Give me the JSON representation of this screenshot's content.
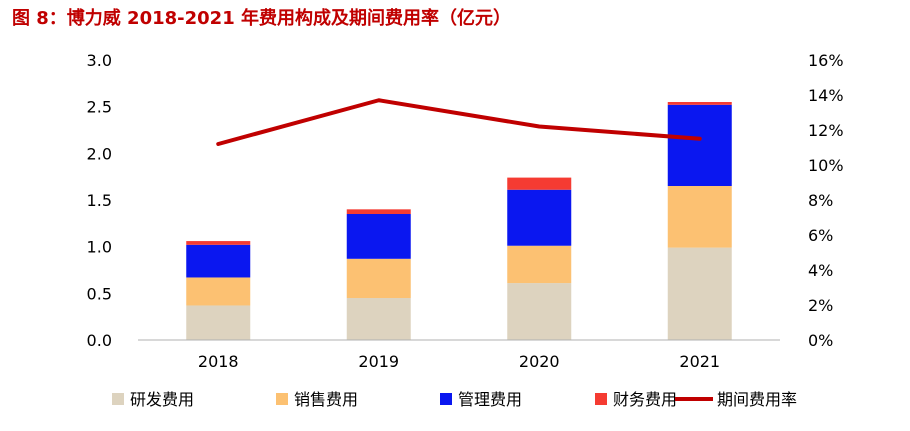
{
  "title": "图 8：博力威 2018-2021 年费用构成及期间费用率（亿元）",
  "colors": {
    "title": "#c00000",
    "rd": "#ddd3bf",
    "sales": "#fcc172",
    "mgmt": "#0a17f0",
    "fin": "#f53b32",
    "ratio": "#c00000",
    "axis": "#b0b0b0"
  },
  "chart_data": {
    "type": "bar",
    "stacked": true,
    "categories": [
      "2018",
      "2019",
      "2020",
      "2021"
    ],
    "series": [
      {
        "name": "研发费用",
        "values": [
          0.37,
          0.45,
          0.61,
          0.99
        ],
        "color_key": "rd"
      },
      {
        "name": "销售费用",
        "values": [
          0.3,
          0.42,
          0.4,
          0.66
        ],
        "color_key": "sales"
      },
      {
        "name": "管理费用",
        "values": [
          0.35,
          0.48,
          0.6,
          0.87
        ],
        "color_key": "mgmt"
      },
      {
        "name": "财务费用",
        "values": [
          0.04,
          0.05,
          0.13,
          0.03
        ],
        "color_key": "fin"
      }
    ],
    "line": {
      "name": "期间费用率",
      "values": [
        11.2,
        13.7,
        12.2,
        11.5
      ],
      "color_key": "ratio",
      "axis": "right"
    },
    "ylim": [
      0,
      3.0
    ],
    "y_ticks": [
      "0.0",
      "0.5",
      "1.0",
      "1.5",
      "2.0",
      "2.5",
      "3.0"
    ],
    "y2lim": [
      0,
      16
    ],
    "y2_ticks": [
      "0%",
      "2%",
      "4%",
      "6%",
      "8%",
      "10%",
      "12%",
      "14%",
      "16%"
    ],
    "legend_position": "bottom",
    "grid": false
  }
}
